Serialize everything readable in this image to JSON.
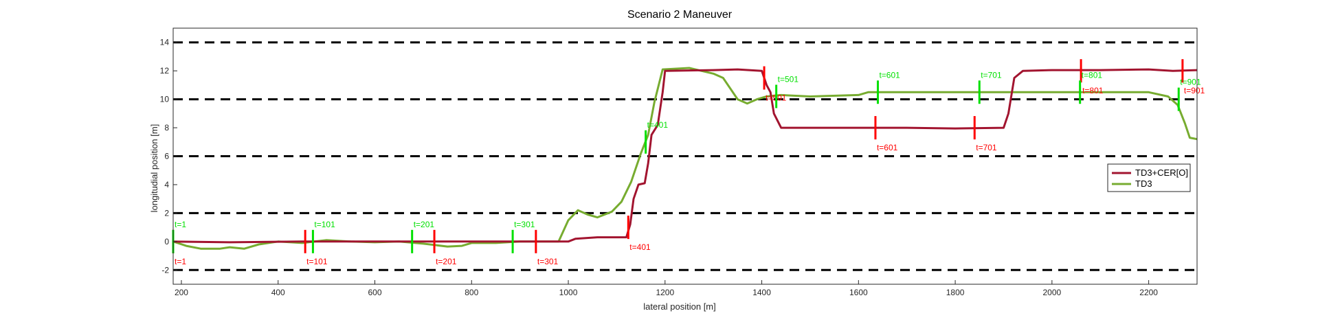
{
  "chart_data": {
    "type": "line",
    "title": "Scenario 2 Maneuver",
    "xlabel": "lateral position [m]",
    "ylabel": "longitudial position [m]",
    "xlim": [
      183,
      2300
    ],
    "ylim": [
      -3,
      15
    ],
    "xticks": [
      200,
      400,
      600,
      800,
      1000,
      1200,
      1400,
      1600,
      1800,
      2000,
      2200
    ],
    "yticks": [
      -2,
      0,
      2,
      4,
      6,
      8,
      10,
      12,
      14
    ],
    "grid": false,
    "lane_lines": [
      -2,
      2,
      6,
      10,
      14
    ],
    "legend_position": "right",
    "series": [
      {
        "name": "TD3+CER[O]",
        "color": "#a2142f",
        "points": [
          [
            183,
            0
          ],
          [
            300,
            -0.05
          ],
          [
            450,
            0
          ],
          [
            600,
            0
          ],
          [
            800,
            0
          ],
          [
            940,
            0
          ],
          [
            980,
            0
          ],
          [
            1000,
            0
          ],
          [
            1015,
            0.2
          ],
          [
            1060,
            0.3
          ],
          [
            1120,
            0.3
          ],
          [
            1128,
            1.2
          ],
          [
            1135,
            3
          ],
          [
            1145,
            4
          ],
          [
            1158,
            4.1
          ],
          [
            1165,
            5.5
          ],
          [
            1172,
            7.5
          ],
          [
            1185,
            8.2
          ],
          [
            1195,
            10.5
          ],
          [
            1200,
            12
          ],
          [
            1300,
            12.05
          ],
          [
            1350,
            12.1
          ],
          [
            1400,
            12
          ],
          [
            1410,
            11
          ],
          [
            1418,
            10.5
          ],
          [
            1425,
            9
          ],
          [
            1440,
            8
          ],
          [
            1500,
            8
          ],
          [
            1600,
            8
          ],
          [
            1700,
            8
          ],
          [
            1800,
            7.95
          ],
          [
            1900,
            8
          ],
          [
            1910,
            9
          ],
          [
            1922,
            11.5
          ],
          [
            1940,
            12
          ],
          [
            2000,
            12.05
          ],
          [
            2100,
            12.05
          ],
          [
            2200,
            12.1
          ],
          [
            2250,
            12
          ],
          [
            2300,
            12.05
          ]
        ],
        "time_marks": [
          {
            "label": "t=1",
            "x": 183,
            "y": 0
          },
          {
            "label": "t=101",
            "x": 456,
            "y": 0
          },
          {
            "label": "t=201",
            "x": 723,
            "y": 0
          },
          {
            "label": "t=301",
            "x": 933,
            "y": 0
          },
          {
            "label": "t=401",
            "x": 1124,
            "y": 1
          },
          {
            "label": "t=501",
            "x": 1405,
            "y": 11.5
          },
          {
            "label": "t=601",
            "x": 1635,
            "y": 8
          },
          {
            "label": "t=701",
            "x": 1840,
            "y": 8
          },
          {
            "label": "t=801",
            "x": 2060,
            "y": 12
          },
          {
            "label": "t=901",
            "x": 2270,
            "y": 12
          }
        ]
      },
      {
        "name": "TD3",
        "color": "#77ac30",
        "points": [
          [
            183,
            0
          ],
          [
            210,
            -0.3
          ],
          [
            240,
            -0.5
          ],
          [
            280,
            -0.5
          ],
          [
            300,
            -0.4
          ],
          [
            330,
            -0.5
          ],
          [
            360,
            -0.2
          ],
          [
            400,
            0
          ],
          [
            450,
            -0.1
          ],
          [
            500,
            0.1
          ],
          [
            550,
            0
          ],
          [
            600,
            -0.05
          ],
          [
            650,
            0
          ],
          [
            700,
            -0.15
          ],
          [
            750,
            -0.35
          ],
          [
            780,
            -0.3
          ],
          [
            800,
            -0.1
          ],
          [
            850,
            -0.1
          ],
          [
            900,
            0
          ],
          [
            980,
            0
          ],
          [
            1000,
            1.5
          ],
          [
            1020,
            2.2
          ],
          [
            1040,
            1.9
          ],
          [
            1060,
            1.7
          ],
          [
            1090,
            2.1
          ],
          [
            1110,
            2.8
          ],
          [
            1130,
            4.2
          ],
          [
            1150,
            6.2
          ],
          [
            1165,
            7.5
          ],
          [
            1178,
            9.8
          ],
          [
            1195,
            12.1
          ],
          [
            1250,
            12.2
          ],
          [
            1300,
            11.8
          ],
          [
            1320,
            11.5
          ],
          [
            1350,
            10
          ],
          [
            1370,
            9.7
          ],
          [
            1390,
            10
          ],
          [
            1410,
            10.2
          ],
          [
            1440,
            10.3
          ],
          [
            1500,
            10.2
          ],
          [
            1600,
            10.3
          ],
          [
            1620,
            10.5
          ],
          [
            1700,
            10.5
          ],
          [
            1800,
            10.5
          ],
          [
            1900,
            10.5
          ],
          [
            2000,
            10.5
          ],
          [
            2100,
            10.5
          ],
          [
            2200,
            10.5
          ],
          [
            2240,
            10.2
          ],
          [
            2260,
            9.6
          ],
          [
            2275,
            8.3
          ],
          [
            2285,
            7.3
          ],
          [
            2300,
            7.2
          ]
        ],
        "time_marks": [
          {
            "label": "t=1",
            "x": 183,
            "y": 0
          },
          {
            "label": "t=101",
            "x": 472,
            "y": 0
          },
          {
            "label": "t=201",
            "x": 677,
            "y": 0
          },
          {
            "label": "t=301",
            "x": 885,
            "y": 0
          },
          {
            "label": "t=401",
            "x": 1160,
            "y": 7
          },
          {
            "label": "t=501",
            "x": 1430,
            "y": 10.2
          },
          {
            "label": "t=601",
            "x": 1640,
            "y": 10.5
          },
          {
            "label": "t=701",
            "x": 1850,
            "y": 10.5
          },
          {
            "label": "t=801",
            "x": 2058,
            "y": 10.5
          },
          {
            "label": "t=901",
            "x": 2262,
            "y": 10
          }
        ]
      }
    ]
  }
}
